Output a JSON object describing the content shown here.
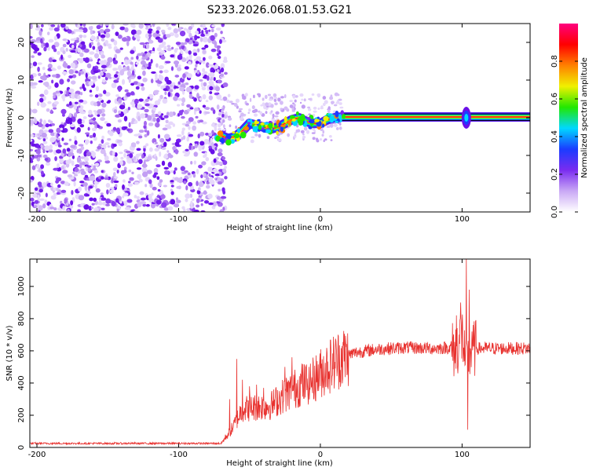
{
  "figure_title": "S233.2026.068.01.53.G21",
  "colors": {
    "snr_line": "#e8312e",
    "axis": "#000000",
    "plot_bg": "#ffffff"
  },
  "chart_data": [
    {
      "type": "heatmap",
      "title": "S233.2026.068.01.53.G21",
      "xlabel": "Height of straight line (km)",
      "ylabel": "Frequency (Hz)",
      "xlim": [
        -205,
        148
      ],
      "ylim": [
        -25,
        25
      ],
      "xticks": [
        -200,
        -100,
        0,
        100
      ],
      "yticks": [
        -20,
        -10,
        0,
        10,
        20
      ],
      "xtick_labels": [
        "-200",
        "-100",
        "0",
        "100"
      ],
      "ytick_labels": [
        "-20",
        "-10",
        "0",
        "10",
        "20"
      ],
      "noise_region_km": [
        -205,
        -70
      ],
      "ridge": {
        "x": [
          -72,
          -65,
          -60,
          -55,
          -50,
          -45,
          -40,
          -35,
          -30,
          -25,
          -20,
          -15,
          -10,
          -5,
          0,
          5,
          10,
          15,
          148
        ],
        "y": [
          -4.5,
          -5.5,
          -5,
          -3.5,
          -1.5,
          -2,
          -2.5,
          -3,
          -2.5,
          -1.5,
          -0.5,
          0,
          -1,
          -1.5,
          -1.5,
          -0.5,
          0,
          0.2,
          0.2
        ]
      },
      "colorbar": {
        "label": "Normalized spectral amplitude",
        "range": [
          0,
          1
        ],
        "ticks": [
          0,
          0.2,
          0.4,
          0.6,
          0.8
        ],
        "tick_labels": [
          "0.0",
          "0.2",
          "0.4",
          "0.6",
          "0.8"
        ],
        "colormap": [
          "#ffffff",
          "#c9a8f5",
          "#7a2cf0",
          "#1a3cff",
          "#00d8ff",
          "#22e800",
          "#f0f000",
          "#ff8000",
          "#ff0000",
          "#ff007f"
        ]
      }
    },
    {
      "type": "line",
      "xlabel": "Height of straight line (km)",
      "ylabel": "SNR (10 * v/v)",
      "xlim": [
        -205,
        148
      ],
      "ylim": [
        0,
        1170
      ],
      "xticks": [
        -200,
        -100,
        0,
        100
      ],
      "yticks": [
        0,
        200,
        400,
        600,
        800,
        1000
      ],
      "xtick_labels": [
        "-200",
        "-100",
        "0",
        "100"
      ],
      "ytick_labels": [
        "0",
        "200",
        "400",
        "600",
        "800",
        "1000"
      ],
      "series": [
        {
          "name": "SNR",
          "color": "#e8312e",
          "envelope_x": [
            -205,
            -70,
            -62,
            -55,
            -45,
            -35,
            -25,
            -15,
            -5,
            5,
            15,
            25,
            40,
            60,
            80,
            90,
            95,
            100,
            103,
            106,
            110,
            148
          ],
          "envelope_y": [
            25,
            25,
            120,
            240,
            250,
            260,
            330,
            380,
            420,
            500,
            560,
            590,
            610,
            620,
            615,
            620,
            600,
            700,
            500,
            600,
            615,
            615
          ],
          "spikes": [
            {
              "x": -64,
              "y": 300
            },
            {
              "x": -59,
              "y": 550
            },
            {
              "x": -55,
              "y": 420
            },
            {
              "x": -50,
              "y": 380
            },
            {
              "x": -45,
              "y": 390
            },
            {
              "x": -40,
              "y": 370
            },
            {
              "x": -25,
              "y": 500
            },
            {
              "x": -20,
              "y": 560
            },
            {
              "x": -13,
              "y": 520
            },
            {
              "x": -8,
              "y": 500
            },
            {
              "x": 96,
              "y": 820
            },
            {
              "x": 99,
              "y": 900
            },
            {
              "x": 101,
              "y": 620
            },
            {
              "x": 103,
              "y": 1170
            },
            {
              "x": 104,
              "y": 110
            },
            {
              "x": 105,
              "y": 980
            },
            {
              "x": 107,
              "y": 720
            }
          ]
        }
      ]
    }
  ]
}
